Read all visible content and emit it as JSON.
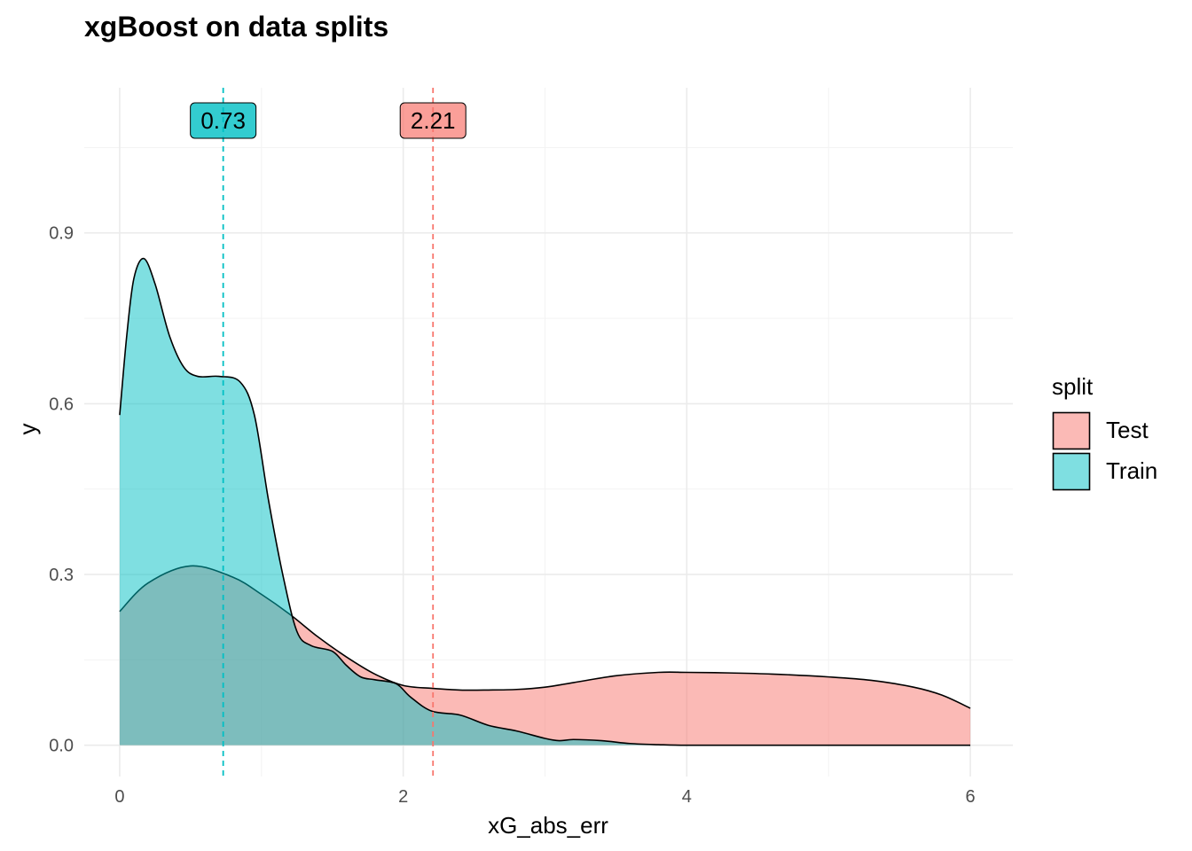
{
  "chart_data": {
    "type": "area",
    "title": "xgBoost on data splits",
    "xlabel": "xG_abs_err",
    "ylabel": "y",
    "xlim": [
      -0.25,
      6.3
    ],
    "ylim": [
      -0.055,
      1.155
    ],
    "x_ticks": [
      0,
      2,
      4,
      6
    ],
    "y_ticks": [
      0.0,
      0.3,
      0.6,
      0.9
    ],
    "x_tick_labels": [
      "0",
      "2",
      "4",
      "6"
    ],
    "y_tick_labels": [
      "0.0",
      "0.3",
      "0.6",
      "0.9"
    ],
    "grid": true,
    "legend": {
      "title": "split",
      "position": "right"
    },
    "series": [
      {
        "name": "Test",
        "color": "#F8766D",
        "fill_opacity": 0.5,
        "mean": 2.21,
        "mean_label": "2.21",
        "x": [
          0,
          0.2,
          0.5,
          0.8,
          1.0,
          1.2,
          1.4,
          1.6,
          1.8,
          2.0,
          2.2,
          2.4,
          2.6,
          2.8,
          3.0,
          3.2,
          3.5,
          3.8,
          4.0,
          4.3,
          4.6,
          5.0,
          5.3,
          5.6,
          5.8,
          6.0
        ],
        "y": [
          0.235,
          0.285,
          0.315,
          0.295,
          0.265,
          0.23,
          0.19,
          0.155,
          0.125,
          0.105,
          0.1,
          0.097,
          0.097,
          0.098,
          0.102,
          0.11,
          0.122,
          0.128,
          0.128,
          0.127,
          0.125,
          0.12,
          0.114,
          0.102,
          0.088,
          0.065
        ]
      },
      {
        "name": "Train",
        "color": "#00BFC4",
        "fill_opacity": 0.5,
        "mean": 0.73,
        "mean_label": "0.73",
        "x": [
          0,
          0.05,
          0.1,
          0.17,
          0.25,
          0.35,
          0.45,
          0.55,
          0.7,
          0.85,
          0.95,
          1.05,
          1.15,
          1.25,
          1.35,
          1.5,
          1.6,
          1.7,
          1.8,
          1.95,
          2.05,
          2.2,
          2.4,
          2.6,
          2.8,
          3.0,
          3.1,
          3.2,
          3.4,
          3.6,
          3.8,
          4.0,
          4.5,
          5.0,
          5.5,
          6.0
        ],
        "y": [
          0.58,
          0.72,
          0.82,
          0.855,
          0.81,
          0.72,
          0.665,
          0.648,
          0.648,
          0.638,
          0.58,
          0.43,
          0.3,
          0.2,
          0.175,
          0.165,
          0.14,
          0.12,
          0.115,
          0.108,
          0.085,
          0.06,
          0.053,
          0.035,
          0.025,
          0.012,
          0.008,
          0.01,
          0.008,
          0.003,
          0.001,
          0.0,
          0.0,
          0.0,
          0.0,
          0.0
        ]
      }
    ]
  }
}
